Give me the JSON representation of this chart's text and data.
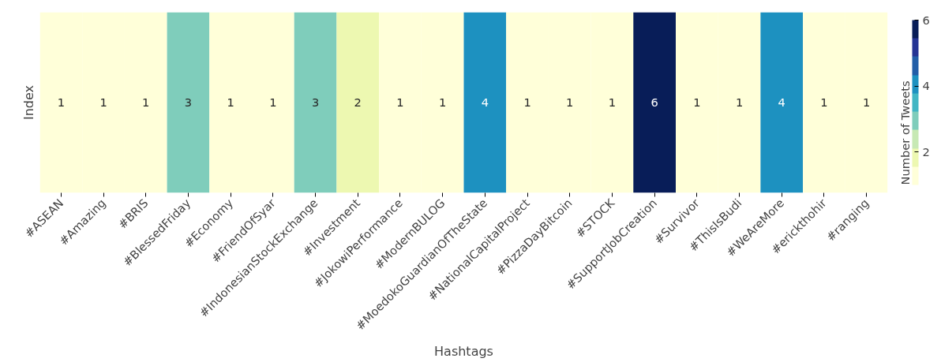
{
  "chart_data": {
    "type": "heatmap",
    "xlabel": "Hashtags",
    "ylabel": "Index",
    "clabel": "Number of Tweets",
    "categories": [
      "#ASEAN",
      "#Amazing",
      "#BRIS",
      "#BlessedFriday",
      "#Economy",
      "#FriendOfSyar",
      "#IndonesianStockExchange",
      "#Investment",
      "#JokowiPerformance",
      "#ModernBULOG",
      "#MoedokoGuardianOfTheState",
      "#NationalCapitalProject",
      "#PizzaDayBitcoin",
      "#STOCK",
      "#SupportJobCreation",
      "#Survivor",
      "#ThisIsBudi",
      "#WeAreMore",
      "#erickthohir",
      "#ranging"
    ],
    "y_categories": [
      null
    ],
    "cells": [
      [
        1,
        1,
        1,
        3,
        1,
        1,
        3,
        2,
        1,
        1,
        4,
        1,
        1,
        1,
        6,
        1,
        1,
        4,
        1,
        1
      ]
    ],
    "clim": [
      1,
      6
    ],
    "cticks": [
      2,
      4,
      6
    ],
    "data_labels": true
  }
}
